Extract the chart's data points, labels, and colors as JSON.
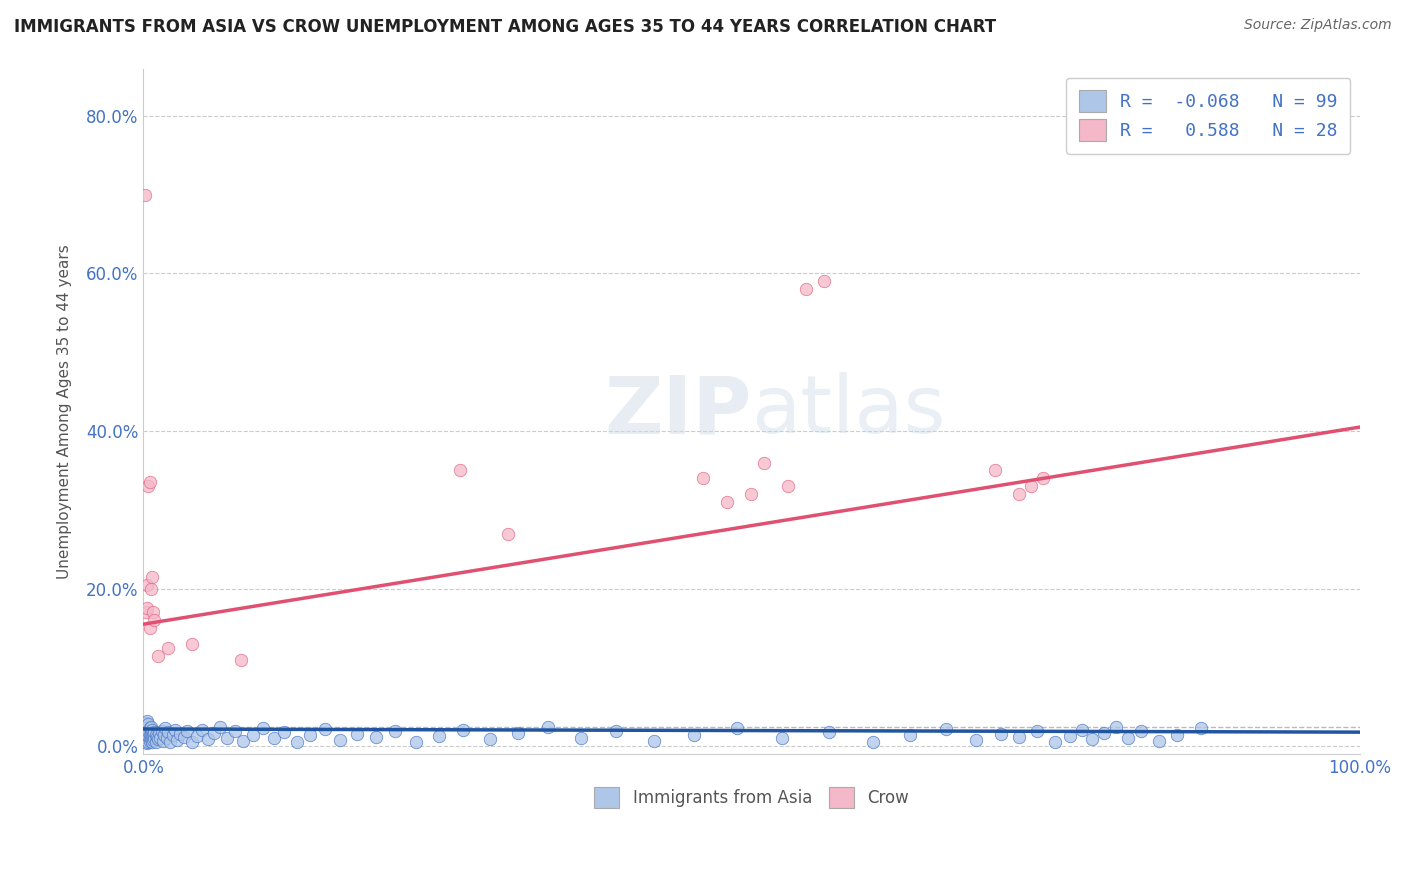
{
  "title": "IMMIGRANTS FROM ASIA VS CROW UNEMPLOYMENT AMONG AGES 35 TO 44 YEARS CORRELATION CHART",
  "source": "Source: ZipAtlas.com",
  "ylabel": "Unemployment Among Ages 35 to 44 years",
  "xlim": [
    0.0,
    1.0
  ],
  "ylim": [
    -0.01,
    0.86
  ],
  "yticks": [
    0.0,
    0.2,
    0.4,
    0.6,
    0.8
  ],
  "ytick_labels": [
    "0.0%",
    "20.0%",
    "40.0%",
    "60.0%",
    "80.0%"
  ],
  "xticks": [
    0.0,
    0.1,
    0.2,
    0.3,
    0.4,
    0.5,
    0.6,
    0.7,
    0.8,
    0.9,
    1.0
  ],
  "xtick_labels": [
    "0.0%",
    "",
    "",
    "",
    "",
    "",
    "",
    "",
    "",
    "",
    "100.0%"
  ],
  "blue_R": -0.068,
  "blue_N": 99,
  "pink_R": 0.588,
  "pink_N": 28,
  "blue_color": "#aec6e8",
  "pink_color": "#f4b8c8",
  "blue_edge_color": "#4472c4",
  "pink_edge_color": "#e06080",
  "blue_line_color": "#2255a0",
  "pink_line_color": "#e05070",
  "watermark_zip": "ZIP",
  "watermark_atlas": "atlas",
  "legend_label_blue": "Immigrants from Asia",
  "legend_label_pink": "Crow",
  "background_color": "#ffffff",
  "grid_color": "#cccccc",
  "blue_trend_x0": 0.0,
  "blue_trend_y0": 0.022,
  "blue_trend_x1": 1.0,
  "blue_trend_y1": 0.018,
  "pink_trend_x0": 0.0,
  "pink_trend_y0": 0.155,
  "pink_trend_x1": 1.0,
  "pink_trend_y1": 0.405,
  "dashed_line_y": 0.025,
  "dashed_line_color": "#bbbbbb",
  "blue_scatter_x": [
    0.001,
    0.001,
    0.001,
    0.002,
    0.002,
    0.002,
    0.002,
    0.003,
    0.003,
    0.003,
    0.003,
    0.003,
    0.004,
    0.004,
    0.004,
    0.004,
    0.005,
    0.005,
    0.005,
    0.006,
    0.006,
    0.006,
    0.007,
    0.007,
    0.007,
    0.008,
    0.008,
    0.009,
    0.009,
    0.01,
    0.01,
    0.011,
    0.012,
    0.013,
    0.014,
    0.015,
    0.016,
    0.017,
    0.018,
    0.019,
    0.02,
    0.022,
    0.024,
    0.026,
    0.028,
    0.03,
    0.033,
    0.036,
    0.04,
    0.044,
    0.048,
    0.053,
    0.058,
    0.063,
    0.069,
    0.075,
    0.082,
    0.09,
    0.098,
    0.107,
    0.116,
    0.126,
    0.137,
    0.149,
    0.162,
    0.176,
    0.191,
    0.207,
    0.224,
    0.243,
    0.263,
    0.285,
    0.308,
    0.333,
    0.36,
    0.389,
    0.42,
    0.453,
    0.488,
    0.525,
    0.564,
    0.6,
    0.63,
    0.66,
    0.685,
    0.705,
    0.72,
    0.735,
    0.75,
    0.762,
    0.772,
    0.78,
    0.79,
    0.8,
    0.81,
    0.82,
    0.835,
    0.85,
    0.87
  ],
  "blue_scatter_y": [
    0.005,
    0.012,
    0.02,
    0.008,
    0.015,
    0.022,
    0.03,
    0.004,
    0.01,
    0.018,
    0.025,
    0.032,
    0.006,
    0.013,
    0.02,
    0.028,
    0.007,
    0.015,
    0.023,
    0.009,
    0.017,
    0.025,
    0.005,
    0.013,
    0.021,
    0.008,
    0.016,
    0.01,
    0.018,
    0.006,
    0.014,
    0.012,
    0.009,
    0.017,
    0.011,
    0.019,
    0.007,
    0.015,
    0.023,
    0.01,
    0.018,
    0.006,
    0.014,
    0.021,
    0.008,
    0.016,
    0.012,
    0.02,
    0.005,
    0.013,
    0.021,
    0.009,
    0.017,
    0.025,
    0.011,
    0.019,
    0.007,
    0.015,
    0.023,
    0.01,
    0.018,
    0.006,
    0.014,
    0.022,
    0.008,
    0.016,
    0.012,
    0.02,
    0.005,
    0.013,
    0.021,
    0.009,
    0.017,
    0.025,
    0.011,
    0.019,
    0.007,
    0.015,
    0.023,
    0.01,
    0.018,
    0.006,
    0.014,
    0.022,
    0.008,
    0.016,
    0.012,
    0.02,
    0.005,
    0.013,
    0.021,
    0.009,
    0.017,
    0.025,
    0.011,
    0.019,
    0.007,
    0.015,
    0.023
  ],
  "pink_scatter_x": [
    0.001,
    0.002,
    0.003,
    0.003,
    0.004,
    0.005,
    0.005,
    0.006,
    0.007,
    0.008,
    0.009,
    0.012,
    0.02,
    0.04,
    0.08,
    0.26,
    0.3,
    0.46,
    0.48,
    0.5,
    0.51,
    0.53,
    0.545,
    0.56,
    0.7,
    0.72,
    0.73,
    0.74
  ],
  "pink_scatter_y": [
    0.7,
    0.17,
    0.175,
    0.205,
    0.33,
    0.335,
    0.15,
    0.2,
    0.215,
    0.17,
    0.16,
    0.115,
    0.125,
    0.13,
    0.11,
    0.35,
    0.27,
    0.34,
    0.31,
    0.32,
    0.36,
    0.33,
    0.58,
    0.59,
    0.35,
    0.32,
    0.33,
    0.34
  ]
}
